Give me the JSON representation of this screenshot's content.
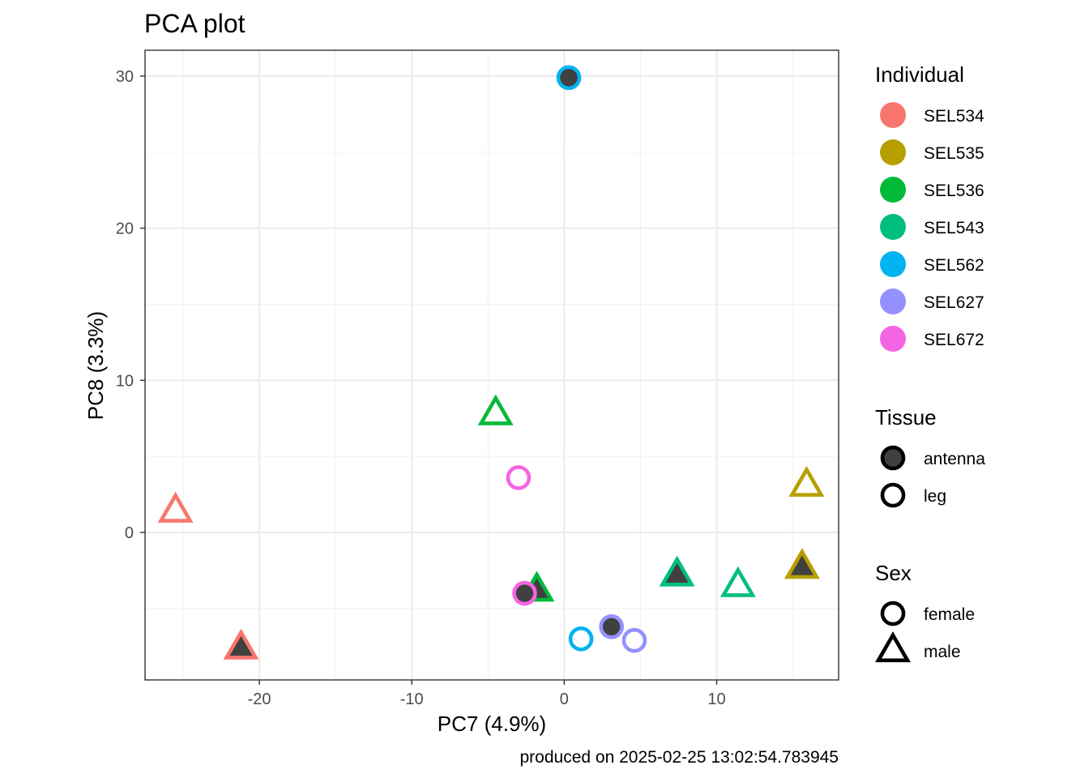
{
  "chart_data": {
    "type": "scatter",
    "title": "PCA plot",
    "xlabel": "PC7 (4.9%)",
    "ylabel": "PC8 (3.3%)",
    "caption": "produced on 2025-02-25 13:02:54.783945",
    "xlim": [
      -27.5,
      18
    ],
    "ylim": [
      -9.7,
      31.7
    ],
    "x_ticks": [
      -20,
      -10,
      0,
      10
    ],
    "y_ticks": [
      0,
      10,
      20,
      30
    ],
    "x_tick_labels": [
      "-20",
      "-10",
      "0",
      "10"
    ],
    "y_tick_labels": [
      "0",
      "10",
      "20",
      "30"
    ],
    "grid": true,
    "theme": "bw",
    "legend_position": "right",
    "fill_color": "#404040",
    "colors": {
      "SEL534": "#F8766D",
      "SEL535": "#B79F00",
      "SEL536": "#00BA38",
      "SEL543": "#00BF7D",
      "SEL562": "#00B4EF",
      "SEL627": "#9590FF",
      "SEL672": "#F564E3"
    },
    "points": [
      {
        "individual": "SEL562",
        "tissue": "antenna",
        "sex": "female",
        "x": 0.3,
        "y": 29.9
      },
      {
        "individual": "SEL536",
        "tissue": "leg",
        "sex": "male",
        "x": -4.5,
        "y": 7.8
      },
      {
        "individual": "SEL672",
        "tissue": "leg",
        "sex": "female",
        "x": -3.0,
        "y": 3.6
      },
      {
        "individual": "SEL534",
        "tissue": "leg",
        "sex": "male",
        "x": -25.5,
        "y": 1.4
      },
      {
        "individual": "SEL535",
        "tissue": "leg",
        "sex": "male",
        "x": 15.9,
        "y": 3.1
      },
      {
        "individual": "SEL535",
        "tissue": "antenna",
        "sex": "male",
        "x": 15.6,
        "y": -2.3
      },
      {
        "individual": "SEL543",
        "tissue": "antenna",
        "sex": "male",
        "x": 7.4,
        "y": -2.8
      },
      {
        "individual": "SEL543",
        "tissue": "leg",
        "sex": "male",
        "x": 11.4,
        "y": -3.5
      },
      {
        "individual": "SEL536",
        "tissue": "antenna",
        "sex": "male",
        "x": -1.8,
        "y": -3.8
      },
      {
        "individual": "SEL672",
        "tissue": "antenna",
        "sex": "female",
        "x": -2.6,
        "y": -4.0
      },
      {
        "individual": "SEL627",
        "tissue": "antenna",
        "sex": "female",
        "x": 3.1,
        "y": -6.2
      },
      {
        "individual": "SEL627",
        "tissue": "leg",
        "sex": "female",
        "x": 4.6,
        "y": -7.1
      },
      {
        "individual": "SEL562",
        "tissue": "leg",
        "sex": "female",
        "x": 1.1,
        "y": -7.0
      },
      {
        "individual": "SEL534",
        "tissue": "antenna",
        "sex": "male",
        "x": -21.2,
        "y": -7.6
      }
    ],
    "legends": [
      {
        "title": "Individual",
        "type": "color",
        "entries": [
          "SEL534",
          "SEL535",
          "SEL536",
          "SEL543",
          "SEL562",
          "SEL627",
          "SEL672"
        ]
      },
      {
        "title": "Tissue",
        "type": "fill",
        "entries": [
          "antenna",
          "leg"
        ]
      },
      {
        "title": "Sex",
        "type": "shape",
        "entries": [
          "female",
          "male"
        ],
        "shapes": {
          "female": "circle",
          "male": "triangle"
        }
      }
    ]
  }
}
